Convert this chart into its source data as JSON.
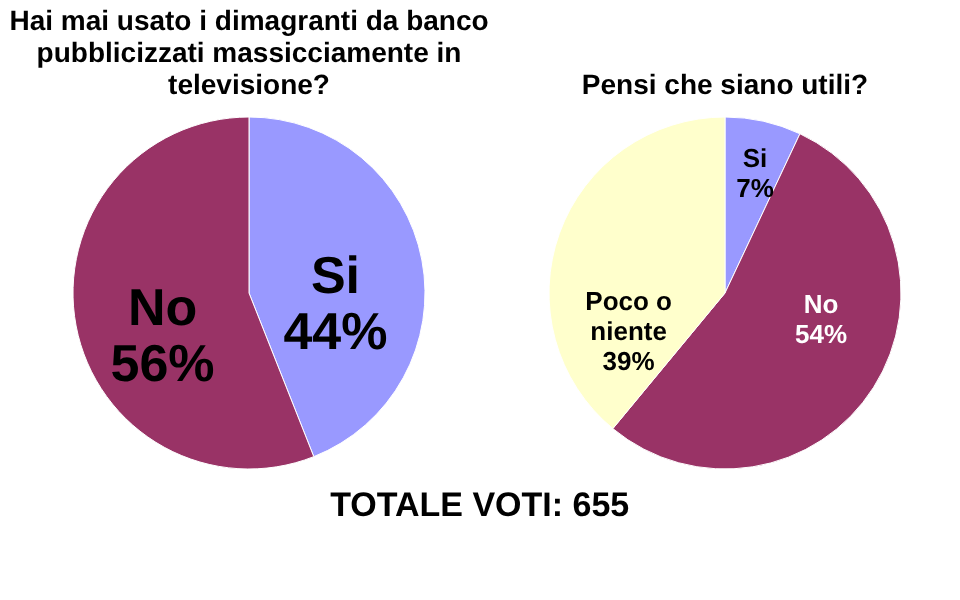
{
  "chart_data": [
    {
      "type": "pie",
      "title": "Hai mai usato i dimagranti da banco pubblicizzati massicciamente in televisione?",
      "categories": [
        "Si",
        "No"
      ],
      "values": [
        44,
        56
      ],
      "colors": [
        "#9999ff",
        "#993366"
      ],
      "value_labels": [
        "44%",
        "56%"
      ],
      "legend": false,
      "annotations": [
        "TOTALE VOTI: 655"
      ]
    },
    {
      "type": "pie",
      "title": "Pensi che siano utili?",
      "categories": [
        "Si",
        "No",
        "Poco o niente"
      ],
      "values": [
        7,
        54,
        39
      ],
      "colors": [
        "#9999ff",
        "#993366",
        "#ffffcc"
      ],
      "value_labels": [
        "7%",
        "54%",
        "39%"
      ],
      "legend": false
    }
  ]
}
